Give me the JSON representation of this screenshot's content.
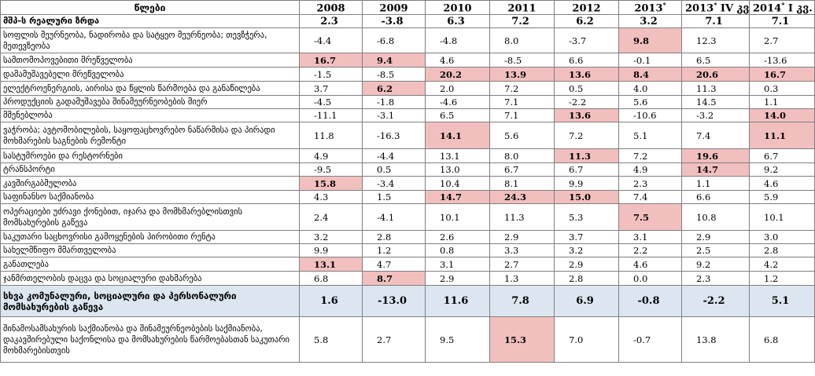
{
  "header": {
    "label": "წლები",
    "columns": [
      {
        "main": "2008",
        "sup": "",
        "tail": ""
      },
      {
        "main": "2009",
        "sup": "",
        "tail": ""
      },
      {
        "main": "2010",
        "sup": "",
        "tail": ""
      },
      {
        "main": "2011",
        "sup": "",
        "tail": ""
      },
      {
        "main": "2012",
        "sup": "",
        "tail": ""
      },
      {
        "main": "2013",
        "sup": "*",
        "tail": ""
      },
      {
        "main": "2013",
        "sup": "*",
        "tail": " IV კვ."
      },
      {
        "main": "2014",
        "sup": "*",
        "tail": " I კვ."
      }
    ]
  },
  "rows": [
    {
      "label": "მშპ-ს რეალური ზრდა",
      "type": "gdp",
      "h": 17,
      "values": [
        "2.3",
        "-3.8",
        "6.3",
        "7.2",
        "6.2",
        "3.2",
        "7.1",
        "7.1"
      ],
      "highlight": []
    },
    {
      "label": "სოფლის მეურნეობა, ნადირობა და სატყეო მეურნეობა; თევზჭერა, მეთევზეობა",
      "type": "normal",
      "h": 32,
      "values": [
        "-4.4",
        "-6.8",
        "-4.8",
        "8.0",
        "-3.7",
        "9.8",
        "12.3",
        "2.7"
      ],
      "highlight": [
        5
      ]
    },
    {
      "label": "სამთომოპოვებითი მრეწველობა",
      "type": "normal",
      "h": 18,
      "values": [
        "16.7",
        "9.4",
        "4.6",
        "-8.5",
        "6.6",
        "-0.1",
        "6.5",
        "-13.6"
      ],
      "highlight": [
        0,
        1
      ]
    },
    {
      "label": "დამამუშავებელი მრეწველობა",
      "type": "normal",
      "h": 18,
      "values": [
        "-1.5",
        "-8.5",
        "20.2",
        "13.9",
        "13.6",
        "8.4",
        "20.6",
        "16.7"
      ],
      "highlight": [
        2,
        3,
        4,
        5,
        6,
        7
      ]
    },
    {
      "label": "ელექტროენერგიის, აირისა და წყლის წარმოება და განაწილება",
      "type": "normal",
      "h": 18,
      "values": [
        "3.7",
        "6.2",
        "2.0",
        "7.2",
        "0.5",
        "4.0",
        "11.3",
        "0.3"
      ],
      "highlight": [
        1
      ]
    },
    {
      "label": "პროდუქციის გადამუშავება შინამეურნეობების მიერ",
      "type": "normal",
      "h": 17,
      "values": [
        "-4.5",
        "-1.8",
        "-4.6",
        "7.1",
        "-2.2",
        "5.6",
        "14.5",
        "1.1"
      ],
      "highlight": []
    },
    {
      "label": "მშენებლობა",
      "type": "normal",
      "h": 17,
      "values": [
        "-11.1",
        "-3.1",
        "6.5",
        "7.1",
        "13.6",
        "-10.6",
        "-3.2",
        "14.0"
      ],
      "highlight": [
        4,
        7
      ]
    },
    {
      "label": "ვაჭრობა; ავტომობილების, საყოფაცხოვრებო ნაწარმისა და პირადი მოხმარების საგნების რემონტი",
      "type": "normal",
      "h": 34,
      "values": [
        "11.8",
        "-16.3",
        "14.1",
        "5.6",
        "7.2",
        "5.1",
        "7.4",
        "11.1"
      ],
      "highlight": [
        2,
        7
      ]
    },
    {
      "label": "სასტუმროები და რესტორნები",
      "type": "normal",
      "h": 18,
      "values": [
        "4.9",
        "-4.4",
        "13.1",
        "8.0",
        "11.3",
        "7.2",
        "19.6",
        "6.7"
      ],
      "highlight": [
        4,
        6
      ]
    },
    {
      "label": "ტრანსპორტი",
      "type": "normal",
      "h": 17,
      "values": [
        "-9.5",
        "0.5",
        "13.0",
        "6.7",
        "6.7",
        "4.9",
        "14.7",
        "9.2"
      ],
      "highlight": [
        6
      ]
    },
    {
      "label": "კავშირგაბმულობა",
      "type": "normal",
      "h": 18,
      "values": [
        "15.8",
        "-3.4",
        "10.4",
        "8.1",
        "9.9",
        "2.3",
        "1.1",
        "4.6"
      ],
      "highlight": [
        0
      ]
    },
    {
      "label": "საფინანსო საქმიანობა",
      "type": "normal",
      "h": 17,
      "values": [
        "4.3",
        "1.5",
        "14.7",
        "24.3",
        "15.0",
        "7.4",
        "6.6",
        "5.9"
      ],
      "highlight": [
        2,
        3,
        4
      ]
    },
    {
      "label": "ოპერაციები უძრავი ქონებით, იჯარა და მომხმარებლისთვის მომსახურების გაწევა",
      "type": "normal",
      "h": 34,
      "values": [
        "2.4",
        "-4.1",
        "10.1",
        "11.3",
        "5.3",
        "7.5",
        "10.8",
        "10.1"
      ],
      "highlight": [
        5
      ]
    },
    {
      "label": "საკუთარი საცხოვრისი გამოყენების პირობითი რენტა",
      "type": "normal",
      "h": 17,
      "values": [
        "3.2",
        "2.8",
        "2.6",
        "2.9",
        "3.7",
        "3.1",
        "2.9",
        "3.0"
      ],
      "highlight": []
    },
    {
      "label": "სახელმწიფო მმართველობა",
      "type": "normal",
      "h": 17,
      "values": [
        "9.9",
        "1.2",
        "0.8",
        "3.3",
        "3.2",
        "2.2",
        "2.5",
        "2.8"
      ],
      "highlight": []
    },
    {
      "label": "განათლება",
      "type": "normal",
      "h": 18,
      "values": [
        "13.1",
        "4.7",
        "3.1",
        "2.7",
        "2.9",
        "4.6",
        "9.2",
        "4.2"
      ],
      "highlight": [
        0
      ]
    },
    {
      "label": "ჯანმრთელობის დაცვა და სოციალური დახმარება",
      "type": "normal",
      "h": 18,
      "values": [
        "6.8",
        "8.7",
        "2.9",
        "1.3",
        "2.8",
        "0.0",
        "2.3",
        "1.2"
      ],
      "highlight": [
        1
      ]
    },
    {
      "label": "სხვა კომუნალური, სოციალური და პერსონალური მომსახურების გაწევა",
      "type": "summary",
      "h": 40,
      "values": [
        "1.6",
        "-13.0",
        "11.6",
        "7.8",
        "6.9",
        "-0.8",
        "-2.2",
        "5.1"
      ],
      "highlight": []
    },
    {
      "label": "შინამოსამსახურის საქმიანობა და შინამეურნეობების საქმიანობა, დაკავშირებული საქონლისა და მომსახურების წარმოებასთან საკუთარი მოხმარებისთვის",
      "type": "normal",
      "h": 58,
      "values": [
        "5.8",
        "2.7",
        "9.5",
        "15.3",
        "7.0",
        "-0.7",
        "13.8",
        "6.8"
      ],
      "highlight": [
        3
      ]
    }
  ]
}
